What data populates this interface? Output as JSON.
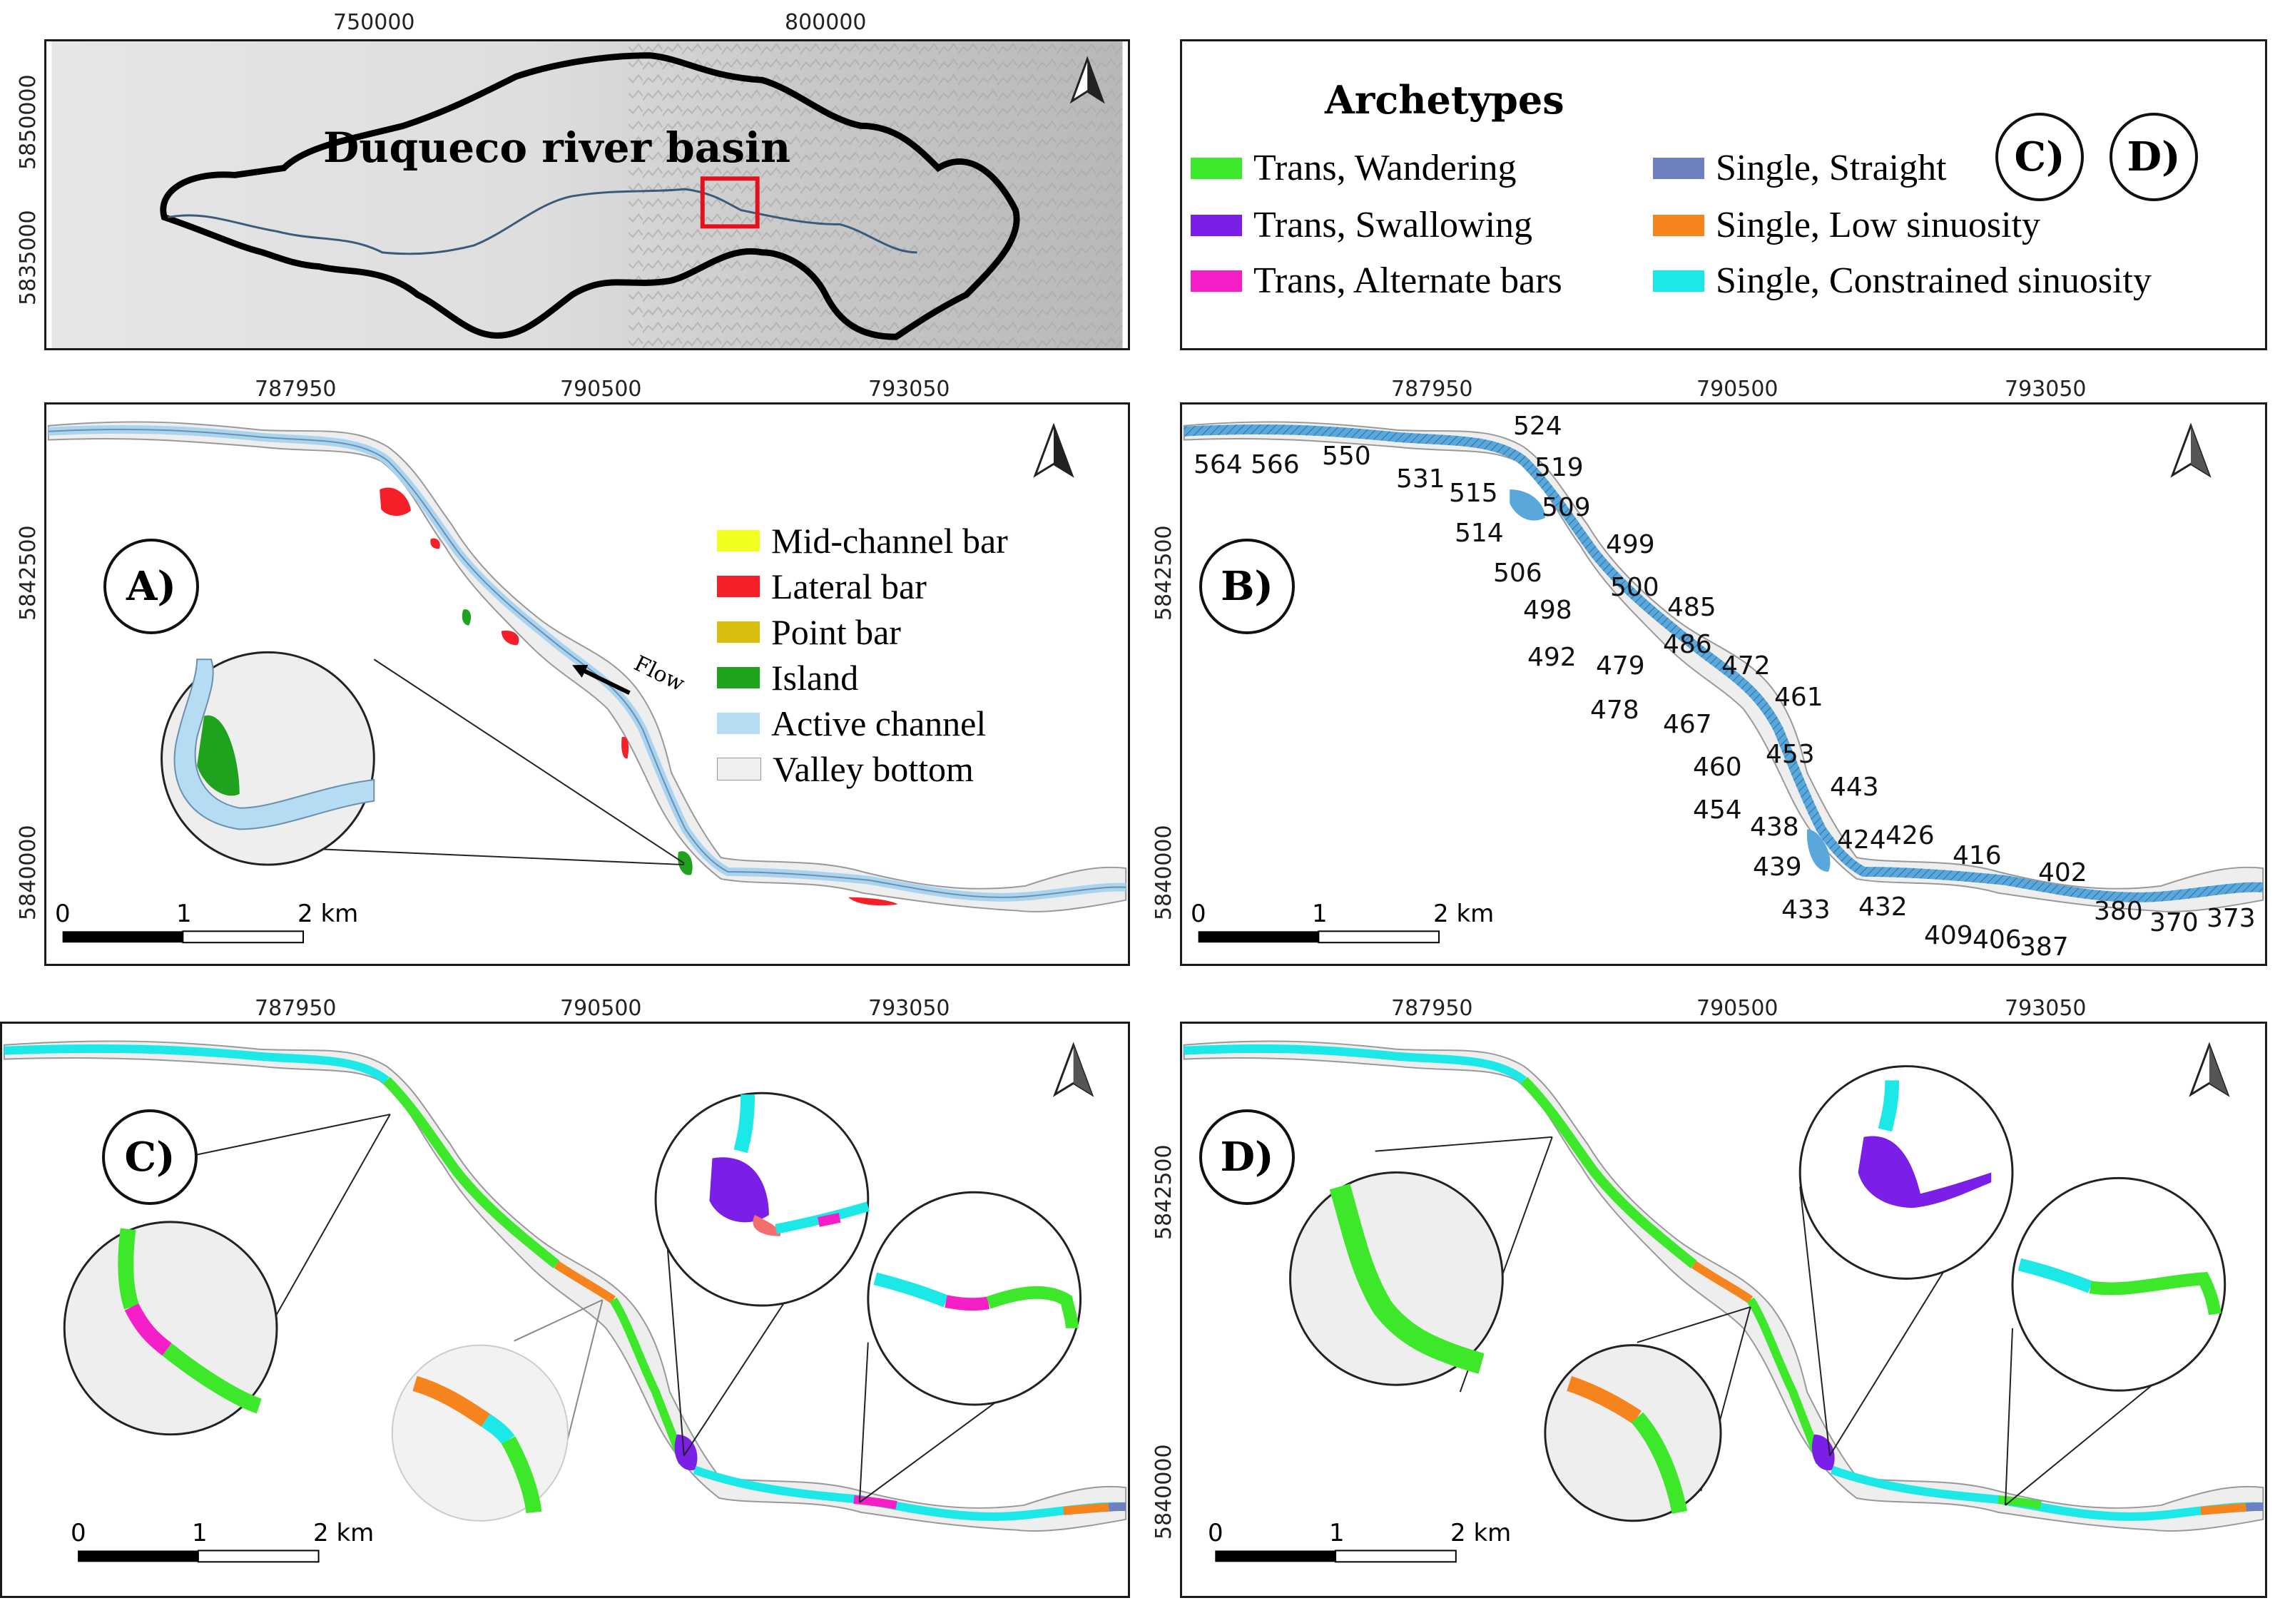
{
  "overview": {
    "x_ticks": [
      "750000",
      "800000"
    ],
    "y_ticks": [
      "5850000",
      "5835000"
    ],
    "basin_label": "Duqueco river basin"
  },
  "archetypes_legend": {
    "title": "Archetypes",
    "items": [
      {
        "label": "Trans, Wandering",
        "color": "#3de82a"
      },
      {
        "label": "Trans, Swallowing",
        "color": "#7b1fe8"
      },
      {
        "label": "Trans, Alternate bars",
        "color": "#f51fc8"
      },
      {
        "label": "Single, Straight",
        "color": "#6f80c0"
      },
      {
        "label": "Single, Low sinuosity",
        "color": "#f5841e"
      },
      {
        "label": "Single, Constrained sinuosity",
        "color": "#1de8e8"
      }
    ],
    "circle_labels": [
      "C)",
      "D)"
    ]
  },
  "panel_x_ticks": [
    "787950",
    "790500",
    "793050"
  ],
  "panel_y_ticks": [
    "5842500",
    "5840000"
  ],
  "scalebar": {
    "labels": [
      "0",
      "1",
      "2 km"
    ]
  },
  "panel_a": {
    "label": "A)",
    "flow_label": "Flow",
    "legend": [
      {
        "label": "Mid-channel bar",
        "color": "#f0ff1e"
      },
      {
        "label": "Lateral bar",
        "color": "#f51f2a"
      },
      {
        "label": "Point bar",
        "color": "#d9be0e"
      },
      {
        "label": "Island",
        "color": "#1fa31f"
      },
      {
        "label": "Active channel",
        "color": "#b5dcf3"
      },
      {
        "label": "Valley bottom",
        "color": "#efefef"
      }
    ]
  },
  "panel_b": {
    "label": "B)",
    "segments": [
      "564",
      "566",
      "550",
      "531",
      "524",
      "519",
      "515",
      "509",
      "514",
      "499",
      "506",
      "500",
      "498",
      "485",
      "492",
      "486",
      "479",
      "472",
      "478",
      "467",
      "461",
      "460",
      "453",
      "454",
      "443",
      "438",
      "424",
      "426",
      "439",
      "416",
      "433",
      "432",
      "402",
      "409",
      "406",
      "387",
      "380",
      "370",
      "373"
    ]
  },
  "panel_c": {
    "label": "C)"
  },
  "panel_d": {
    "label": "D)"
  }
}
